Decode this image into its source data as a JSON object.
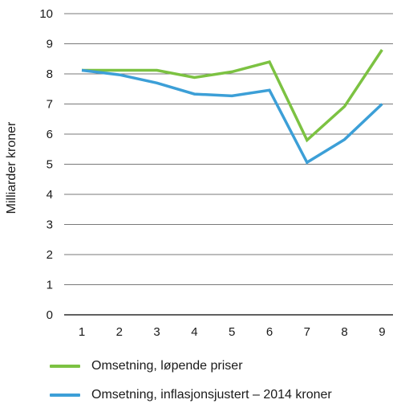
{
  "chart_data": {
    "type": "line",
    "categories": [
      "1",
      "2",
      "3",
      "4",
      "5",
      "6",
      "7",
      "8",
      "9"
    ],
    "ylabel": "Milliarder kroner",
    "xlabel": "",
    "ylim": [
      0,
      10
    ],
    "yticks": [
      "0",
      "1",
      "2",
      "3",
      "4",
      "5",
      "6",
      "7",
      "8",
      "9",
      "10"
    ],
    "grid": true,
    "legend_position": "bottom",
    "series": [
      {
        "name": "Omsetning, løpende priser",
        "color": "#7cc242",
        "values": [
          8.12,
          8.12,
          8.12,
          7.88,
          8.07,
          8.4,
          5.8,
          6.92,
          8.8
        ]
      },
      {
        "name": "Omsetning, inflasjonsjustert – 2014 kroner",
        "color": "#3c9fd7",
        "values": [
          8.12,
          7.97,
          7.7,
          7.33,
          7.27,
          7.46,
          5.06,
          5.82,
          7.0
        ]
      }
    ]
  }
}
